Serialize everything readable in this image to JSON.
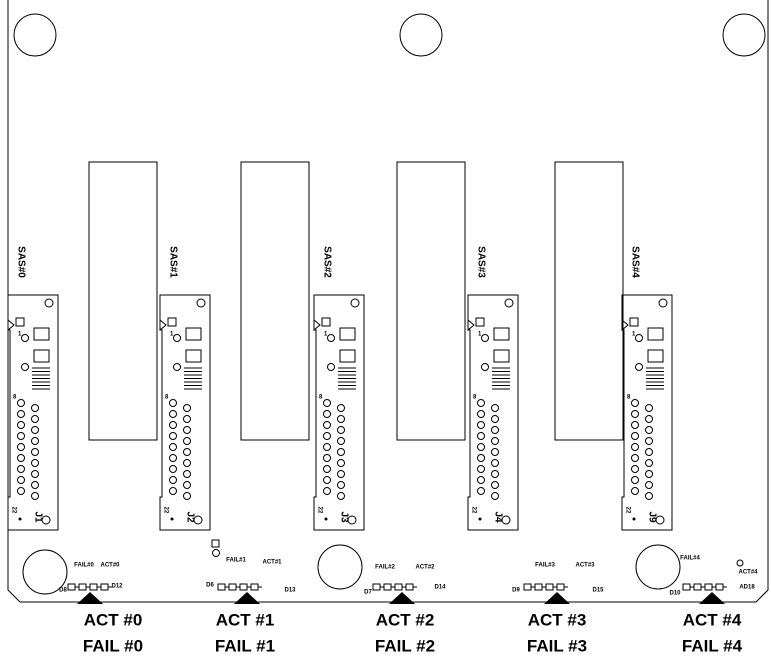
{
  "slots": [
    {
      "sas": "SAS#0",
      "j": "J1",
      "pin1": "1",
      "pin8": "8",
      "pin22": "22",
      "fail_led": "FAIL#0",
      "act_led": "ACT#0",
      "d_left": "D8",
      "d_right": "D12",
      "act_label": "ACT #0",
      "fail_label": "FAIL #0"
    },
    {
      "sas": "SAS#1",
      "j": "J2",
      "pin1": "1",
      "pin8": "8",
      "pin22": "22",
      "fail_led": "FAIL#1",
      "act_led": "ACT#1",
      "d_left": "D6",
      "d_right": "D13",
      "act_label": "ACT #1",
      "fail_label": "FAIL #1"
    },
    {
      "sas": "SAS#2",
      "j": "J3",
      "pin1": "1",
      "pin8": "8",
      "pin22": "22",
      "fail_led": "FAIL#2",
      "act_led": "ACT#2",
      "d_left": "D7",
      "d_right": "D14",
      "act_label": "ACT #2",
      "fail_label": "FAIL #2"
    },
    {
      "sas": "SAS#3",
      "j": "J4",
      "pin1": "1",
      "pin8": "8",
      "pin22": "22",
      "fail_led": "FAIL#3",
      "act_led": "ACT#3",
      "d_left": "D9",
      "d_right": "D15",
      "act_label": "ACT #3",
      "fail_label": "FAIL #3"
    },
    {
      "sas": "SAS#4",
      "j": "J9",
      "pin1": "1",
      "pin8": "8",
      "pin22": "22",
      "fail_led": "FAIL#4",
      "act_led": "ACT#4",
      "d_left": "D10",
      "d_right": "AD18",
      "act_label": "ACT #4",
      "fail_label": "FAIL #4"
    }
  ]
}
